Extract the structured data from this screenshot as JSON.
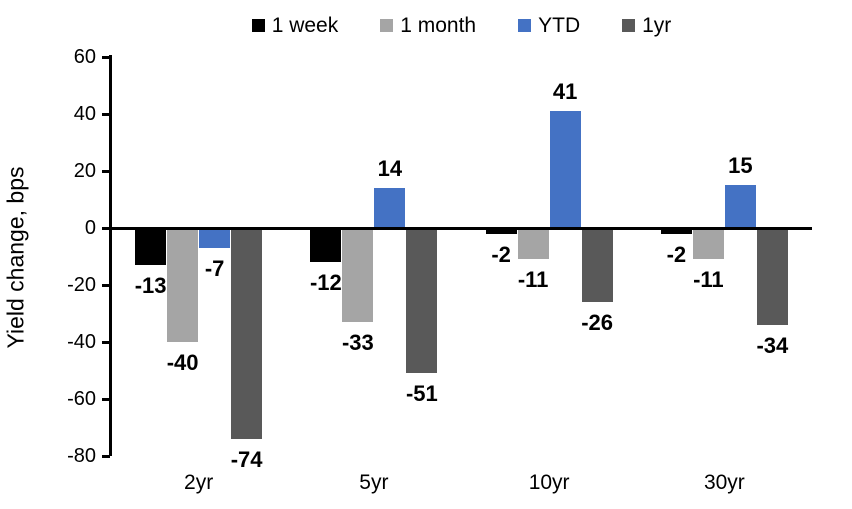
{
  "chart_data": {
    "type": "bar",
    "title": "",
    "ylabel": "Yield change, bps",
    "xlabel": "",
    "categories": [
      "2yr",
      "5yr",
      "10yr",
      "30yr"
    ],
    "series": [
      {
        "name": "1 week",
        "color": "#000000",
        "values": [
          -13,
          -12,
          -2,
          -2
        ]
      },
      {
        "name": "1 month",
        "color": "#A5A5A5",
        "values": [
          -40,
          -33,
          -11,
          -11
        ]
      },
      {
        "name": "YTD",
        "color": "#4472C4",
        "values": [
          -7,
          14,
          41,
          15
        ]
      },
      {
        "name": "1yr",
        "color": "#595959",
        "values": [
          -74,
          -51,
          -26,
          -34
        ]
      }
    ],
    "ylim": [
      -80,
      60
    ],
    "yticks": [
      60,
      40,
      20,
      0,
      -20,
      -40,
      -60,
      -80
    ],
    "grid": false,
    "data_labels": true,
    "legend_position": "top",
    "axis_color": "#000000",
    "background_color": "#FFFFFF"
  }
}
